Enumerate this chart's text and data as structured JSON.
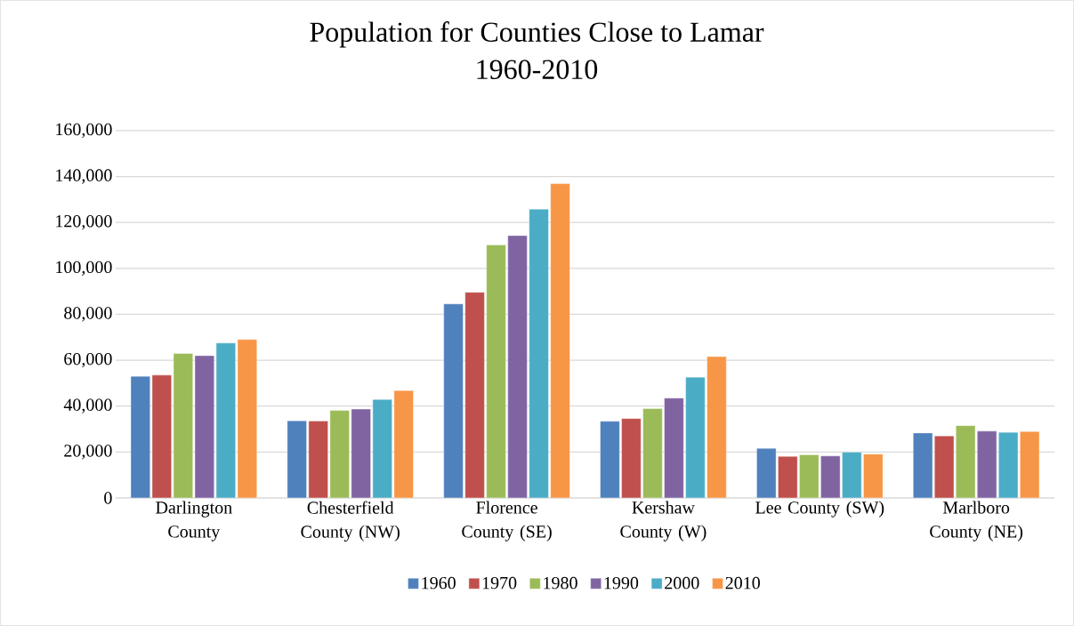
{
  "chart_data": {
    "type": "bar",
    "title": "Population for Counties Close to Lamar\n1960-2010",
    "categories": [
      "Darlington County",
      "Chesterfield County (NW)",
      "Florence County (SE)",
      "Kershaw County (W)",
      "Lee County (SW)",
      "Marlboro County (NE)"
    ],
    "series": [
      {
        "name": "1960",
        "color": "#4f81bd",
        "values": [
          53000,
          33600,
          84500,
          33400,
          21600,
          28300
        ]
      },
      {
        "name": "1970",
        "color": "#c0504d",
        "values": [
          53500,
          33500,
          89600,
          34600,
          18100,
          27000
        ]
      },
      {
        "name": "1980",
        "color": "#9bbb59",
        "values": [
          62900,
          38100,
          110200,
          38900,
          18800,
          31500
        ]
      },
      {
        "name": "1990",
        "color": "#8064a2",
        "values": [
          62000,
          38700,
          114300,
          43500,
          18300,
          29100
        ]
      },
      {
        "name": "2000",
        "color": "#4bacc6",
        "values": [
          67500,
          42900,
          125800,
          52600,
          19900,
          28600
        ]
      },
      {
        "name": "2010",
        "color": "#f79646",
        "values": [
          69000,
          46800,
          136900,
          61600,
          19100,
          28900
        ]
      }
    ],
    "ylim": [
      0,
      160000
    ],
    "yticks": [
      {
        "value": 0,
        "label": "0"
      },
      {
        "value": 20000,
        "label": "20,000"
      },
      {
        "value": 40000,
        "label": "40,000"
      },
      {
        "value": 60000,
        "label": "60,000"
      },
      {
        "value": 80000,
        "label": "80,000"
      },
      {
        "value": 100000,
        "label": "100,000"
      },
      {
        "value": 120000,
        "label": "120,000"
      },
      {
        "value": 140000,
        "label": "140,000"
      },
      {
        "value": 160000,
        "label": "160,000"
      }
    ],
    "grid": "y",
    "legend": "bottom"
  }
}
